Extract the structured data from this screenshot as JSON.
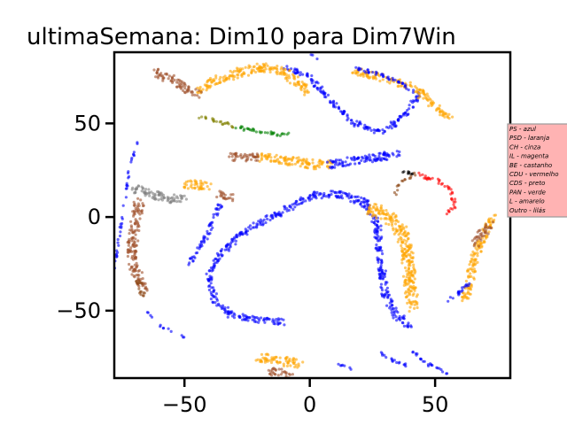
{
  "chart_data": {
    "type": "scatter",
    "title": "ultimaSemana: Dim10 para Dim7Win",
    "xlabel": "",
    "ylabel": "",
    "xlim": [
      -78,
      80
    ],
    "ylim": [
      -86,
      88
    ],
    "x_ticks": [
      -50,
      0,
      50
    ],
    "y_ticks": [
      -50,
      0,
      50
    ],
    "x_tick_labels": [
      "−50",
      "0",
      "50"
    ],
    "y_tick_labels": [
      "−50",
      "0",
      "50"
    ],
    "grid": false,
    "legend_position": "right (clipped)",
    "legend_background": "#ffb3b3",
    "legend": [
      {
        "label": "PS - azul",
        "color": "#0000ff"
      },
      {
        "label": "PSD - laranja",
        "color": "#ffa500"
      },
      {
        "label": "CH - cinza",
        "color": "#808080"
      },
      {
        "label": "IL - magenta",
        "color": "#ff00ff"
      },
      {
        "label": "BE - castanho",
        "color": "#8b4513"
      },
      {
        "label": "CDU - vermelho",
        "color": "#ff0000"
      },
      {
        "label": "CDS - preto",
        "color": "#000000"
      },
      {
        "label": "PAN - verde",
        "color": "#008000"
      },
      {
        "label": "L - amarelo",
        "color": "#cccc00"
      },
      {
        "label": "Outro - lilás",
        "color": "#c8a2c8"
      }
    ],
    "series": [
      {
        "color": "#0000ff",
        "width": 7,
        "points": [
          [
            2,
            12
          ],
          [
            -8,
            5
          ],
          [
            -18,
            -2
          ],
          [
            -28,
            -10
          ],
          [
            -36,
            -20
          ],
          [
            -40,
            -32
          ],
          [
            -38,
            -45
          ],
          [
            -32,
            -52
          ],
          [
            -20,
            -55
          ],
          [
            -10,
            -56
          ]
        ]
      },
      {
        "color": "#0000ff",
        "width": 8,
        "points": [
          [
            2,
            12
          ],
          [
            12,
            12
          ],
          [
            22,
            8
          ],
          [
            27,
            -5
          ],
          [
            28,
            -22
          ],
          [
            30,
            -40
          ],
          [
            34,
            -52
          ],
          [
            40,
            -58
          ]
        ]
      },
      {
        "color": "#0000ff",
        "width": 5,
        "points": [
          [
            -48,
            -25
          ],
          [
            -42,
            -12
          ],
          [
            -38,
            0
          ],
          [
            -35,
            8
          ]
        ]
      },
      {
        "color": "#ffa500",
        "width": 14,
        "points": [
          [
            24,
            5
          ],
          [
            32,
            0
          ],
          [
            37,
            -10
          ],
          [
            39,
            -22
          ],
          [
            40,
            -35
          ],
          [
            41,
            -48
          ]
        ]
      },
      {
        "color": "#0000ff",
        "width": 6,
        "points": [
          [
            -10,
            80
          ],
          [
            0,
            75
          ],
          [
            8,
            62
          ],
          [
            18,
            50
          ],
          [
            28,
            45
          ],
          [
            34,
            50
          ],
          [
            40,
            58
          ],
          [
            44,
            67
          ]
        ]
      },
      {
        "color": "#ffa500",
        "width": 10,
        "points": [
          [
            -1,
            67
          ],
          [
            -10,
            78
          ],
          [
            -20,
            80
          ],
          [
            -34,
            75
          ],
          [
            -44,
            68
          ]
        ]
      },
      {
        "color": "#ffa500",
        "width": 8,
        "points": [
          [
            18,
            78
          ],
          [
            40,
            70
          ],
          [
            48,
            62
          ],
          [
            56,
            52
          ]
        ]
      },
      {
        "color": "#0000ff",
        "width": 4,
        "points": [
          [
            18,
            80
          ],
          [
            28,
            76
          ],
          [
            36,
            72
          ],
          [
            42,
            66
          ]
        ]
      },
      {
        "color": "#0000ff",
        "width": 2,
        "points": [
          [
            0,
            88
          ],
          [
            3,
            84
          ]
        ]
      },
      {
        "color": "#a0522d",
        "width": 9,
        "points": [
          [
            -62,
            78
          ],
          [
            -56,
            74
          ],
          [
            -50,
            69
          ],
          [
            -44,
            65
          ]
        ]
      },
      {
        "color": "#ffa500",
        "width": 10,
        "points": [
          [
            -20,
            32
          ],
          [
            -8,
            30
          ],
          [
            2,
            28
          ],
          [
            8,
            28
          ]
        ]
      },
      {
        "color": "#0000ff",
        "width": 9,
        "points": [
          [
            8,
            28
          ],
          [
            18,
            30
          ],
          [
            28,
            32
          ],
          [
            36,
            34
          ]
        ]
      },
      {
        "color": "#a0522d",
        "width": 9,
        "points": [
          [
            -32,
            32
          ],
          [
            -24,
            32
          ],
          [
            -20,
            32
          ]
        ]
      },
      {
        "color": "#008000",
        "width": 4,
        "points": [
          [
            -30,
            48
          ],
          [
            -20,
            46
          ],
          [
            -12,
            44
          ],
          [
            -8,
            44
          ]
        ]
      },
      {
        "color": "#808000",
        "width": 4,
        "points": [
          [
            -44,
            53
          ],
          [
            -36,
            51
          ],
          [
            -30,
            48
          ]
        ]
      },
      {
        "color": "#ffa500",
        "width": 10,
        "points": [
          [
            -50,
            18
          ],
          [
            -44,
            17
          ],
          [
            -40,
            16
          ]
        ]
      },
      {
        "color": "#808080",
        "width": 10,
        "points": [
          [
            -70,
            16
          ],
          [
            -63,
            12
          ],
          [
            -56,
            10
          ],
          [
            -50,
            10
          ]
        ]
      },
      {
        "color": "#a0522d",
        "width": 11,
        "points": [
          [
            -68,
            8
          ],
          [
            -70,
            -5
          ],
          [
            -71,
            -18
          ],
          [
            -70,
            -28
          ],
          [
            -68,
            -34
          ],
          [
            -66,
            -38
          ]
        ]
      },
      {
        "color": "#8b4513",
        "width": 7,
        "points": [
          [
            -68,
            -34
          ],
          [
            -68,
            -38
          ],
          [
            -67,
            -42
          ]
        ]
      },
      {
        "color": "#a0522d",
        "width": 9,
        "points": [
          [
            -36,
            12
          ],
          [
            -30,
            10
          ]
        ]
      },
      {
        "color": "#0000ff",
        "width": 2,
        "points": [
          [
            -78,
            -28
          ],
          [
            -72,
            25
          ],
          [
            -69,
            40
          ]
        ]
      },
      {
        "color": "#000000",
        "width": 3,
        "points": [
          [
            35,
            25
          ],
          [
            42,
            23
          ]
        ]
      },
      {
        "color": "#ff0000",
        "width": 4,
        "points": [
          [
            42,
            23
          ],
          [
            50,
            20
          ],
          [
            56,
            14
          ],
          [
            58,
            6
          ],
          [
            54,
            2
          ]
        ]
      },
      {
        "color": "#8b4513",
        "width": 3,
        "points": [
          [
            42,
            23
          ],
          [
            36,
            18
          ],
          [
            34,
            12
          ]
        ]
      },
      {
        "color": "#ffa500",
        "width": 9,
        "points": [
          [
            62,
            -45
          ],
          [
            64,
            -32
          ],
          [
            66,
            -20
          ],
          [
            70,
            -8
          ],
          [
            73,
            0
          ]
        ]
      },
      {
        "color": "#a0522d",
        "width": 9,
        "points": [
          [
            66,
            -15
          ],
          [
            69,
            -8
          ],
          [
            72,
            -4
          ]
        ]
      },
      {
        "color": "#0000ff",
        "width": 4,
        "points": [
          [
            55,
            -45
          ],
          [
            60,
            -40
          ],
          [
            64,
            -35
          ]
        ]
      },
      {
        "color": "#0000ff",
        "width": 3,
        "points": [
          [
            40,
            -70
          ],
          [
            46,
            -78
          ],
          [
            56,
            -84
          ]
        ]
      },
      {
        "color": "#0000ff",
        "width": 3,
        "points": [
          [
            28,
            -72
          ],
          [
            34,
            -77
          ],
          [
            40,
            -80
          ]
        ]
      },
      {
        "color": "#ffa500",
        "width": 10,
        "points": [
          [
            -20,
            -75
          ],
          [
            -12,
            -77
          ],
          [
            -4,
            -78
          ]
        ]
      },
      {
        "color": "#a0522d",
        "width": 9,
        "points": [
          [
            -16,
            -82
          ],
          [
            -8,
            -84
          ]
        ]
      },
      {
        "color": "#0000ff",
        "width": 2,
        "points": [
          [
            10,
            -78
          ],
          [
            18,
            -82
          ]
        ]
      },
      {
        "color": "#0000ff",
        "width": 2,
        "points": [
          [
            -60,
            -58
          ],
          [
            -50,
            -64
          ]
        ]
      },
      {
        "color": "#0000ff",
        "width": 2,
        "points": [
          [
            -66,
            -48
          ],
          [
            -63,
            -54
          ]
        ]
      }
    ]
  }
}
